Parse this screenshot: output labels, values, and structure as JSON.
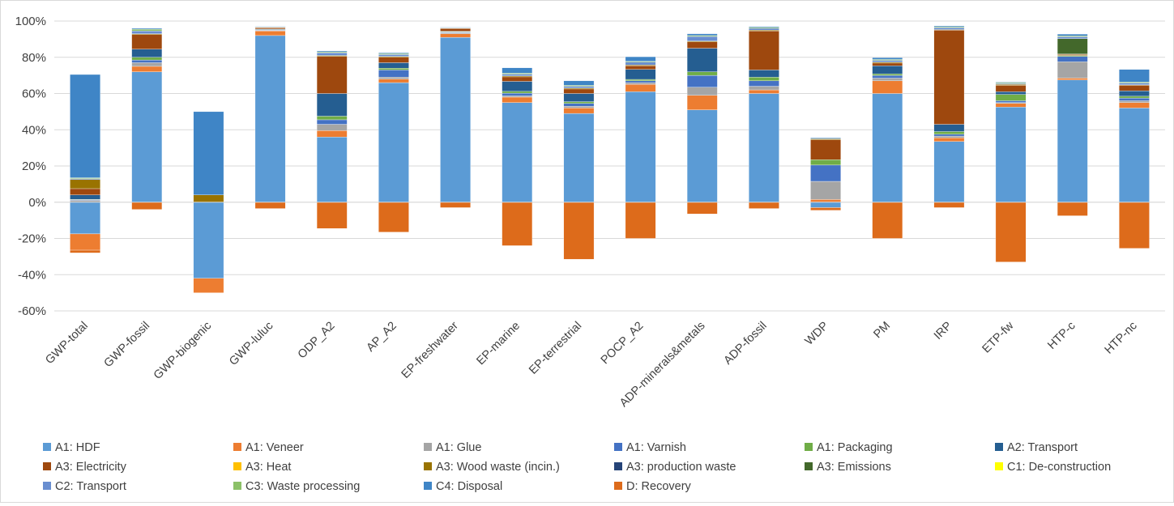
{
  "chart_data": {
    "type": "bar",
    "stacked": true,
    "title": "",
    "xlabel": "",
    "ylabel": "",
    "ylim": [
      -60,
      100
    ],
    "y_ticks": [
      "-60%",
      "-40%",
      "-20%",
      "0%",
      "20%",
      "40%",
      "60%",
      "80%",
      "100%"
    ],
    "y_tick_values": [
      -60,
      -40,
      -20,
      0,
      20,
      40,
      60,
      80,
      100
    ],
    "grid": "horizontal",
    "legend_position": "bottom",
    "categories": [
      "GWP-total",
      "GWP-fossil",
      "GWP-biogenic",
      "GWP-luluc",
      "ODP_A2",
      "AP_A2",
      "EP-freshwater",
      "EP-marine",
      "EP-terrestrial",
      "POCP_A2",
      "ADP-minerals&metals",
      "ADP-fossil",
      "WDP",
      "PM",
      "IRP",
      "ETP-fw",
      "HTP-c",
      "HTP-nc"
    ],
    "series": [
      {
        "name": "A1: HDF",
        "color": "#5b9bd5",
        "values": [
          -17.5,
          72,
          -42,
          92,
          36,
          66,
          91,
          55,
          49,
          61,
          51,
          60,
          -3,
          60,
          33.5,
          52.5,
          67.5,
          52
        ]
      },
      {
        "name": "A1: Veneer",
        "color": "#ed7d31",
        "values": [
          -9,
          3,
          -8,
          2.5,
          3.5,
          2,
          2,
          3,
          3,
          4,
          8,
          2,
          1.5,
          7,
          2,
          2,
          1,
          3
        ]
      },
      {
        "name": "A1: Glue",
        "color": "#a5a5a5",
        "values": [
          1,
          2,
          0,
          0.3,
          3.5,
          1,
          0.5,
          0.7,
          1,
          1,
          4.5,
          2,
          10,
          1.5,
          1,
          0.5,
          9,
          1
        ]
      },
      {
        "name": "A1: Varnish",
        "color": "#4472c4",
        "values": [
          0.3,
          1.5,
          0,
          0.3,
          2.5,
          4,
          0.3,
          1.5,
          1.5,
          1,
          6.5,
          3,
          9,
          1.5,
          1,
          1,
          3,
          1.5
        ]
      },
      {
        "name": "A1: Packaging",
        "color": "#70ad47",
        "values": [
          0.2,
          1.5,
          0,
          0.2,
          2,
          1,
          0.3,
          1,
          1,
          0.8,
          2,
          2,
          3,
          0.8,
          1.5,
          3.5,
          0.5,
          1
        ]
      },
      {
        "name": "A2: Transport",
        "color": "#255e91",
        "values": [
          2.5,
          4.5,
          0,
          0.3,
          12.5,
          3,
          0.3,
          5.5,
          4.5,
          5.5,
          13,
          4,
          0,
          4.5,
          4,
          1.5,
          0,
          3
        ]
      },
      {
        "name": "A3: Electricity",
        "color": "#9e480e",
        "values": [
          3.5,
          8,
          0,
          0.7,
          20.5,
          3,
          1.5,
          2.5,
          2.5,
          2,
          3.5,
          21.5,
          11,
          1.5,
          52,
          3.5,
          0.5,
          3
        ]
      },
      {
        "name": "A3: Heat",
        "color": "#ffc000",
        "values": [
          0,
          0,
          0,
          0,
          0,
          0,
          0,
          0,
          0,
          0,
          0,
          0,
          0,
          0,
          0,
          0,
          0,
          0
        ]
      },
      {
        "name": "A3: Wood waste (incin.)",
        "color": "#997300",
        "values": [
          5,
          0.5,
          4,
          0.2,
          0.5,
          0.5,
          0.2,
          0.5,
          0.5,
          0.5,
          0.5,
          0.5,
          0.5,
          0.5,
          0.3,
          0.5,
          0.3,
          0.3
        ]
      },
      {
        "name": "A3: production waste",
        "color": "#264478",
        "values": [
          0,
          0,
          0,
          0,
          0,
          0,
          0,
          0,
          0,
          0,
          0,
          0,
          0,
          0,
          0,
          0,
          0,
          0
        ]
      },
      {
        "name": "A3: Emissions",
        "color": "#43682b",
        "values": [
          0,
          0,
          0,
          0,
          0,
          0,
          0,
          0,
          0,
          0,
          0,
          0,
          0,
          0,
          0,
          0,
          8.5,
          0
        ]
      },
      {
        "name": "C1: De-construction",
        "color": "#ffff00",
        "values": [
          0,
          0,
          0,
          0,
          0,
          0,
          0,
          0,
          0,
          0,
          0,
          0,
          0,
          0,
          0,
          0,
          0,
          0
        ]
      },
      {
        "name": "C2: Transport",
        "color": "#698ed0",
        "values": [
          0.5,
          1.5,
          0,
          0.3,
          1.5,
          1,
          0.3,
          1,
          1,
          1.5,
          2.5,
          1,
          0,
          1,
          1,
          0.5,
          1,
          1
        ]
      },
      {
        "name": "C3: Waste processing",
        "color": "#8cc168",
        "values": [
          0.5,
          1,
          0,
          0.2,
          0.5,
          0.5,
          0.2,
          0.5,
          0.5,
          0.5,
          0.5,
          0.5,
          0,
          0.5,
          0.5,
          0.5,
          0.5,
          0.5
        ]
      },
      {
        "name": "C4: Disposal",
        "color": "#3f85c6",
        "values": [
          57,
          0.5,
          46,
          0.2,
          0.5,
          0.5,
          0.2,
          3,
          2.5,
          2.5,
          1,
          0.5,
          0.5,
          1,
          0.5,
          0.3,
          1,
          7
        ]
      },
      {
        "name": "D: Recovery",
        "color": "#dd6b1b",
        "values": [
          -1.5,
          -4,
          0,
          -3.5,
          -14.5,
          -16.5,
          -3,
          -24,
          -31.5,
          -20,
          -6.5,
          -3.5,
          -1.5,
          -20,
          -3,
          -33,
          -7.5,
          -25.5
        ]
      }
    ]
  }
}
